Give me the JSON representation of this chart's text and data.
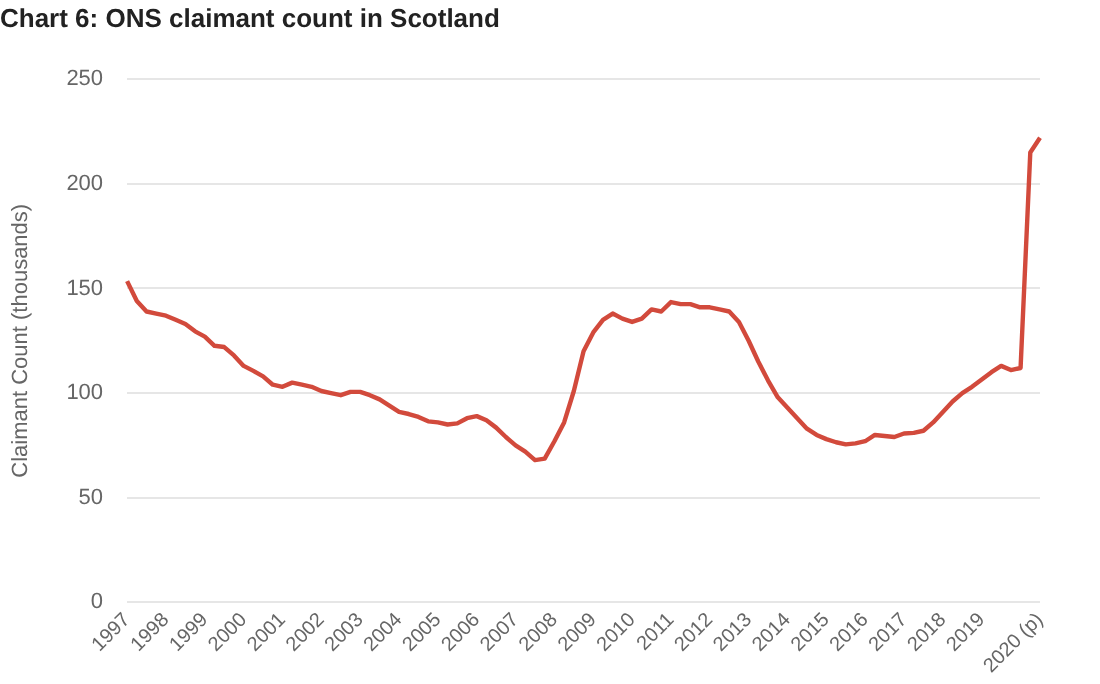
{
  "chart_data": {
    "type": "line",
    "title": "Chart 6: ONS claimant count in Scotland",
    "ylabel": "Claimant Count (thousands)",
    "categories": [
      "1997",
      null,
      null,
      null,
      "1998",
      null,
      null,
      null,
      "1999",
      null,
      null,
      null,
      "2000",
      null,
      null,
      null,
      "2001",
      null,
      null,
      null,
      "2002",
      null,
      null,
      null,
      "2003",
      null,
      null,
      null,
      "2004",
      null,
      null,
      null,
      "2005",
      null,
      null,
      null,
      "2006",
      null,
      null,
      null,
      "2007",
      null,
      null,
      null,
      "2008",
      null,
      null,
      null,
      "2009",
      null,
      null,
      null,
      "2010",
      null,
      null,
      null,
      "2011",
      null,
      null,
      null,
      "2012",
      null,
      null,
      null,
      "2013",
      null,
      null,
      null,
      "2014",
      null,
      null,
      null,
      "2015",
      null,
      null,
      null,
      "2016",
      null,
      null,
      null,
      "2017",
      null,
      null,
      null,
      "2018",
      null,
      null,
      null,
      "2019",
      null,
      null,
      null,
      null,
      null,
      "2020 (p)"
    ],
    "series": [
      {
        "color": "#d24a3c",
        "values": [
          153.5,
          144,
          139,
          138,
          137,
          135,
          133,
          129.5,
          127,
          122.6,
          122,
          118,
          113,
          110.6,
          108,
          104,
          103,
          105,
          104,
          103,
          101,
          100,
          99,
          100.6,
          100.6,
          99,
          97,
          94,
          91,
          90,
          88.6,
          86.5,
          86,
          85,
          85.5,
          88,
          89,
          87,
          83.5,
          79,
          75,
          72,
          68,
          68.7,
          77,
          86,
          101,
          120,
          129,
          135,
          138,
          135.6,
          134,
          135.6,
          140,
          139,
          143.5,
          142.5,
          142.5,
          141,
          141,
          140,
          139,
          134,
          125,
          115,
          106,
          98,
          93,
          88,
          83,
          80,
          78,
          76.5,
          75.5,
          76,
          77,
          80,
          79.5,
          79,
          80.7,
          81,
          82,
          86,
          91,
          96,
          100,
          103,
          106.5,
          110,
          113,
          111,
          112,
          215,
          222
        ]
      }
    ],
    "ylim": [
      0,
      250
    ],
    "yticks": [
      0,
      50,
      100,
      150,
      200,
      250
    ],
    "grid": "y",
    "legend": false,
    "marker": "none",
    "line_style": "solid"
  }
}
